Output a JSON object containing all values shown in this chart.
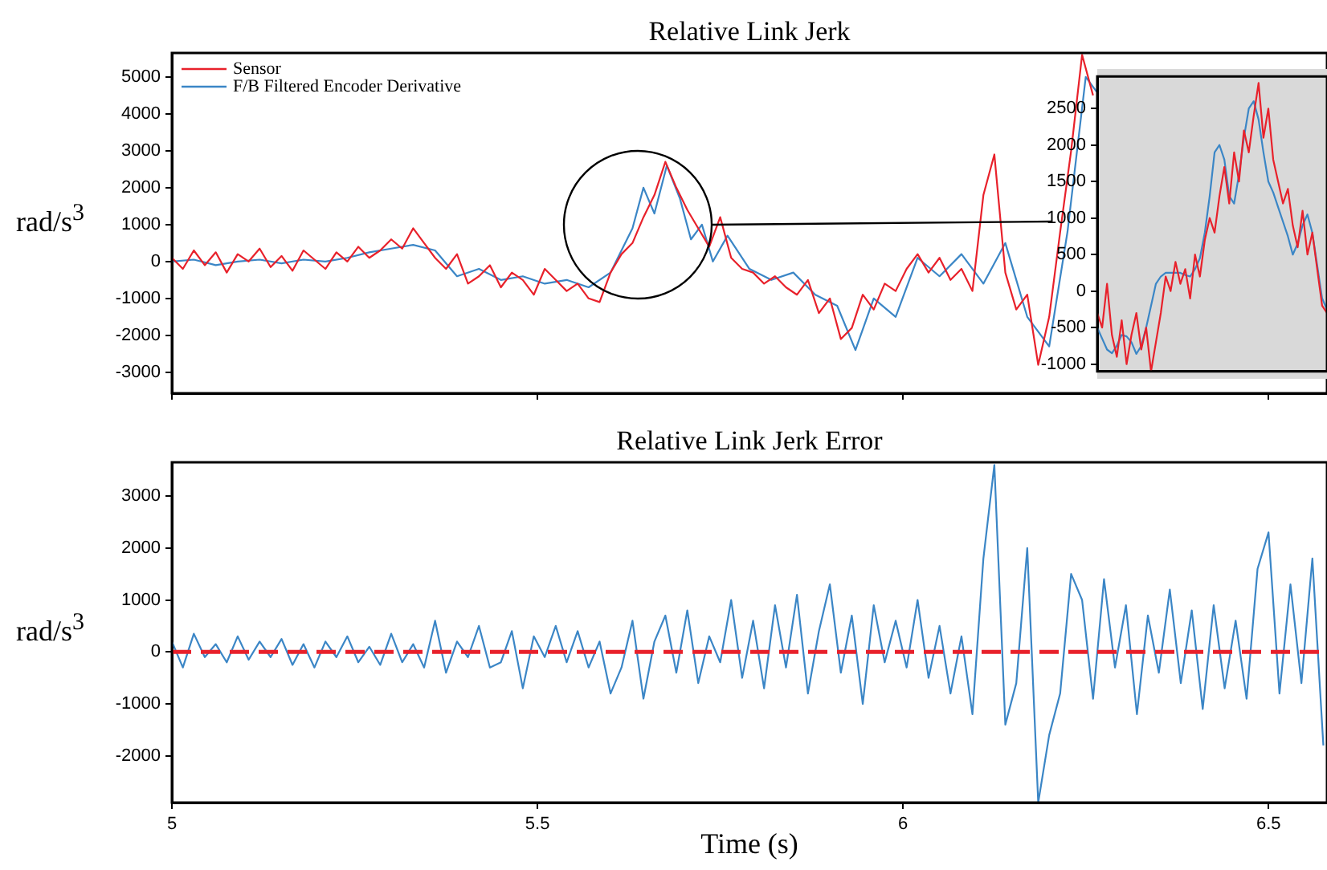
{
  "chart_data": [
    {
      "type": "line",
      "title": "Relative Link Jerk",
      "ylabel": "rad/s$^{3}$",
      "xlim": [
        5,
        6.58
      ],
      "xticks": [
        5,
        5.5,
        6,
        6.5
      ],
      "ylim": [
        -3570,
        5650
      ],
      "yticks": [
        -3000,
        -2000,
        -1000,
        0,
        1000,
        2000,
        3000,
        4000,
        5000
      ],
      "tick_labels": "y",
      "legend": "top left",
      "series": [
        {
          "name": "Sensor",
          "color": "#e8212b",
          "x": [
            5,
            5.015,
            5.03,
            5.045,
            5.06,
            5.075,
            5.09,
            5.105,
            5.12,
            5.135,
            5.15,
            5.165,
            5.18,
            5.195,
            5.21,
            5.225,
            5.24,
            5.255,
            5.27,
            5.285,
            5.3,
            5.315,
            5.33,
            5.345,
            5.36,
            5.375,
            5.39,
            5.405,
            5.42,
            5.435,
            5.45,
            5.465,
            5.48,
            5.495,
            5.51,
            5.525,
            5.54,
            5.555,
            5.57,
            5.585,
            5.6,
            5.615,
            5.63,
            5.645,
            5.66,
            5.675,
            5.69,
            5.705,
            5.72,
            5.735,
            5.75,
            5.765,
            5.78,
            5.795,
            5.81,
            5.825,
            5.84,
            5.855,
            5.87,
            5.885,
            5.9,
            5.915,
            5.93,
            5.945,
            5.96,
            5.975,
            5.99,
            6.005,
            6.02,
            6.035,
            6.05,
            6.065,
            6.08,
            6.095,
            6.11,
            6.125,
            6.14,
            6.155,
            6.17,
            6.185,
            6.2,
            6.215,
            6.23,
            6.245,
            6.26
          ],
          "values": [
            100,
            -200,
            300,
            -100,
            250,
            -300,
            200,
            0,
            350,
            -150,
            150,
            -250,
            300,
            50,
            -200,
            250,
            0,
            400,
            100,
            300,
            600,
            350,
            900,
            500,
            100,
            -200,
            200,
            -600,
            -400,
            -100,
            -700,
            -300,
            -500,
            -900,
            -200,
            -500,
            -800,
            -600,
            -1000,
            -1100,
            -300,
            200,
            500,
            1200,
            1800,
            2700,
            2000,
            1400,
            900,
            400,
            1200,
            100,
            -200,
            -300,
            -600,
            -400,
            -700,
            -900,
            -500,
            -1400,
            -1000,
            -2100,
            -1800,
            -900,
            -1300,
            -600,
            -800,
            -200,
            200,
            -300,
            100,
            -500,
            -200,
            -800,
            1800,
            2900,
            -300,
            -1300,
            -900,
            -2800,
            -1500,
            800,
            3000,
            5600,
            4500
          ]
        },
        {
          "name": "F/B Filtered Encoder Derivative",
          "color": "#3b86c6",
          "x": [
            5,
            5.03,
            5.06,
            5.09,
            5.12,
            5.15,
            5.18,
            5.21,
            5.24,
            5.27,
            5.3,
            5.33,
            5.36,
            5.39,
            5.42,
            5.45,
            5.48,
            5.51,
            5.54,
            5.57,
            5.6,
            5.615,
            5.63,
            5.645,
            5.66,
            5.677,
            5.695,
            5.71,
            5.725,
            5.74,
            5.76,
            5.79,
            5.82,
            5.85,
            5.88,
            5.91,
            5.935,
            5.96,
            5.99,
            6.02,
            6.05,
            6.08,
            6.11,
            6.14,
            6.17,
            6.2,
            6.225,
            6.25,
            6.265
          ],
          "values": [
            0,
            50,
            -100,
            0,
            50,
            -50,
            50,
            0,
            100,
            250,
            350,
            450,
            300,
            -400,
            -200,
            -500,
            -400,
            -600,
            -500,
            -700,
            -300,
            300,
            900,
            2000,
            1300,
            2600,
            1700,
            600,
            1000,
            0,
            700,
            -200,
            -500,
            -300,
            -900,
            -1200,
            -2400,
            -1000,
            -1500,
            100,
            -400,
            200,
            -600,
            500,
            -1500,
            -2300,
            800,
            5000,
            4600
          ]
        }
      ]
    },
    {
      "type": "line",
      "categories": [
        null,
        null,
        null,
        null,
        null,
        null,
        null,
        null,
        null,
        null,
        null,
        null,
        null,
        null,
        null,
        null,
        null,
        null,
        null,
        null,
        null,
        null,
        null,
        null,
        null,
        null,
        null,
        null,
        null,
        null,
        null,
        null,
        null,
        null,
        null,
        null,
        null,
        null,
        null,
        null,
        null,
        null,
        null,
        null,
        null,
        null,
        null,
        null
      ],
      "ylim": [
        -1100,
        2940
      ],
      "yticks": [
        -1000,
        -500,
        0,
        500,
        1000,
        1500,
        2000,
        2500
      ],
      "tick_labels": "y",
      "series": [
        {
          "color": "#e8212b",
          "values": [
            -300,
            -500,
            100,
            -600,
            -900,
            -400,
            -1000,
            -600,
            -300,
            -800,
            -500,
            -1100,
            -700,
            -300,
            200,
            0,
            400,
            100,
            300,
            -100,
            500,
            200,
            700,
            1000,
            800,
            1300,
            1700,
            1200,
            1900,
            1500,
            2200,
            1900,
            2400,
            2850,
            2100,
            2500,
            1800,
            1500,
            1200,
            1400,
            900,
            600,
            1100,
            500,
            800,
            300,
            -200,
            -300
          ]
        },
        {
          "color": "#3b86c6",
          "values": [
            -500,
            -650,
            -800,
            -850,
            -750,
            -600,
            -620,
            -700,
            -860,
            -750,
            -500,
            -200,
            100,
            200,
            250,
            250,
            250,
            250,
            220,
            200,
            300,
            450,
            800,
            1300,
            1900,
            2000,
            1800,
            1300,
            1200,
            1600,
            2100,
            2500,
            2600,
            2350,
            1900,
            1500,
            1350,
            1150,
            950,
            750,
            500,
            650,
            900,
            1050,
            800,
            350,
            -100,
            -250
          ]
        }
      ]
    },
    {
      "type": "line",
      "title": "Relative Link Jerk Error",
      "xlabel": "Time (s)",
      "ylabel": "rad/s$^{3}$",
      "xlim": [
        5,
        6.58
      ],
      "xticks": [
        5,
        5.5,
        6,
        6.5
      ],
      "ylim": [
        -2900,
        3650
      ],
      "yticks": [
        -2000,
        -1000,
        0,
        1000,
        2000,
        3000
      ],
      "ref_lines": [
        {
          "axis": "y",
          "value": 0,
          "color": "#e8212b",
          "line_style": "dashed"
        }
      ],
      "series": [
        {
          "color": "#3b86c6",
          "x": [
            5,
            5.015,
            5.03,
            5.045,
            5.06,
            5.075,
            5.09,
            5.105,
            5.12,
            5.135,
            5.15,
            5.165,
            5.18,
            5.195,
            5.21,
            5.225,
            5.24,
            5.255,
            5.27,
            5.285,
            5.3,
            5.315,
            5.33,
            5.345,
            5.36,
            5.375,
            5.39,
            5.405,
            5.42,
            5.435,
            5.45,
            5.465,
            5.48,
            5.495,
            5.51,
            5.525,
            5.54,
            5.555,
            5.57,
            5.585,
            5.6,
            5.615,
            5.63,
            5.645,
            5.66,
            5.675,
            5.69,
            5.705,
            5.72,
            5.735,
            5.75,
            5.765,
            5.78,
            5.795,
            5.81,
            5.825,
            5.84,
            5.855,
            5.87,
            5.885,
            5.9,
            5.915,
            5.93,
            5.945,
            5.96,
            5.975,
            5.99,
            6.005,
            6.02,
            6.035,
            6.05,
            6.065,
            6.08,
            6.095,
            6.11,
            6.125,
            6.14,
            6.155,
            6.17,
            6.185,
            6.2,
            6.215,
            6.23,
            6.245,
            6.26,
            6.275,
            6.29,
            6.305,
            6.32,
            6.335,
            6.35,
            6.365,
            6.38,
            6.395,
            6.41,
            6.425,
            6.44,
            6.455,
            6.47,
            6.485,
            6.5,
            6.515,
            6.53,
            6.545,
            6.56,
            6.575
          ],
          "values": [
            200,
            -300,
            350,
            -100,
            150,
            -200,
            300,
            -150,
            200,
            -100,
            250,
            -250,
            150,
            -300,
            200,
            -100,
            300,
            -200,
            100,
            -250,
            350,
            -200,
            150,
            -300,
            600,
            -400,
            200,
            -100,
            500,
            -300,
            -200,
            400,
            -700,
            300,
            -100,
            500,
            -200,
            400,
            -300,
            200,
            -800,
            -300,
            600,
            -900,
            200,
            700,
            -400,
            800,
            -600,
            300,
            -200,
            1000,
            -500,
            600,
            -700,
            900,
            -300,
            1100,
            -800,
            400,
            1300,
            -400,
            700,
            -1000,
            900,
            -200,
            600,
            -300,
            1000,
            -500,
            500,
            -800,
            300,
            -1200,
            1800,
            3600,
            -1400,
            -600,
            2000,
            -2900,
            -1600,
            -800,
            1500,
            1000,
            -900,
            1400,
            -300,
            900,
            -1200,
            700,
            -400,
            1200,
            -600,
            800,
            -1100,
            900,
            -700,
            600,
            -900,
            1600,
            2300,
            -800,
            1300,
            -600,
            1800,
            -1800
          ]
        }
      ]
    }
  ]
}
